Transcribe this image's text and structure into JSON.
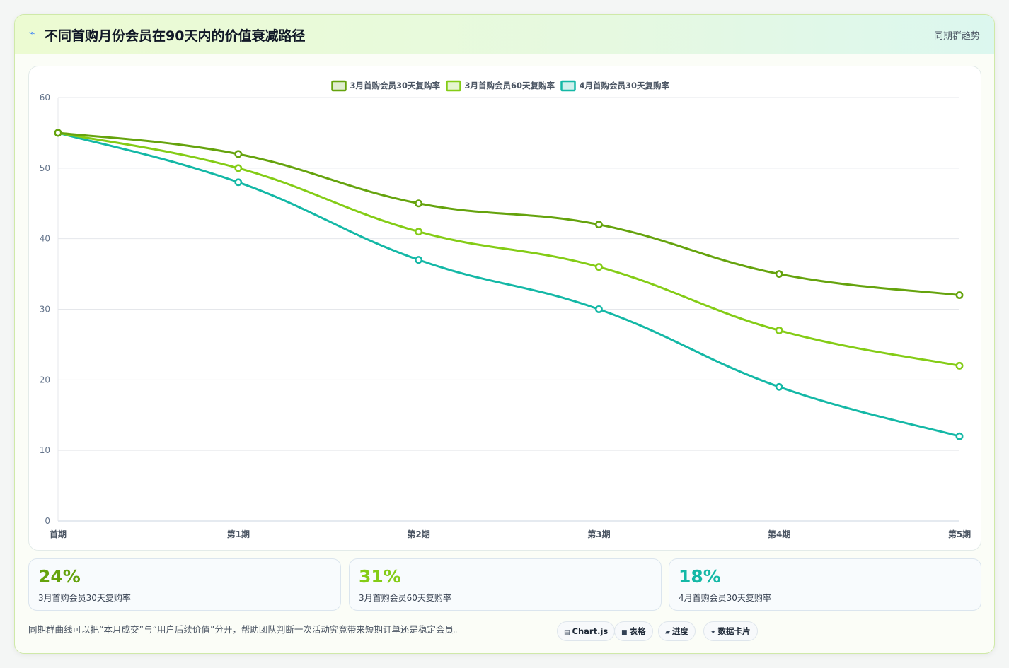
{
  "header": {
    "icon": "sparkle-icon",
    "title": "不同首购月份会员在90天内的价值衰减路径",
    "tag": "同期群趋势"
  },
  "chart_data": {
    "type": "line",
    "x": [
      "首期",
      "第1期",
      "第2期",
      "第3期",
      "第4期",
      "第5期"
    ],
    "series": [
      {
        "name": "3月首购会员30天复购率",
        "color": "#65a30d",
        "values": [
          55,
          52,
          45,
          42,
          35,
          32
        ]
      },
      {
        "name": "3月首购会员60天复购率",
        "color": "#84cc16",
        "values": [
          55,
          50,
          41,
          36,
          27,
          22
        ]
      },
      {
        "name": "4月首购会员30天复购率",
        "color": "#14b8a6",
        "values": [
          55,
          48,
          37,
          30,
          19,
          12
        ]
      }
    ],
    "ylim": [
      0,
      60
    ],
    "yticks": [
      0,
      10,
      20,
      30,
      40,
      50,
      60
    ],
    "grid": true,
    "legend": "top-center"
  },
  "kpis": [
    {
      "value": "24%",
      "label": "3月首购会员30天复购率",
      "color": "#65a30d"
    },
    {
      "value": "31%",
      "label": "3月首购会员60天复购率",
      "color": "#84cc16"
    },
    {
      "value": "18%",
      "label": "4月首购会员30天复购率",
      "color": "#14b8a6"
    }
  ],
  "footer": {
    "note": "同期群曲线可以把“本月成交”与“用户后续价值”分开，帮助团队判断一次活动究竟带来短期订单还是稳定会员。",
    "chips": [
      {
        "icon": "chart-icon",
        "glyph": "▤",
        "label": "Chart.js"
      },
      {
        "icon": "table-icon",
        "glyph": "■",
        "label": "表格"
      },
      {
        "icon": "progress-icon",
        "glyph": "▰",
        "label": "进度"
      },
      {
        "icon": "card-icon",
        "glyph": "✦",
        "label": "数据卡片"
      }
    ]
  }
}
